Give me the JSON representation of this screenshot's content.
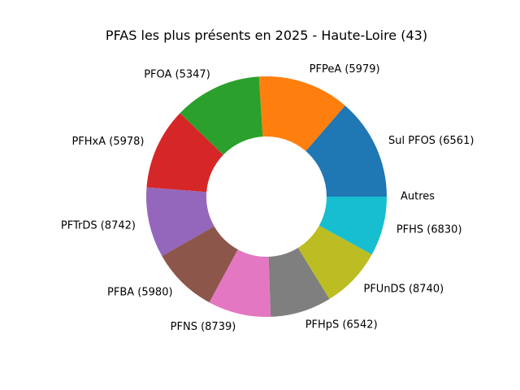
{
  "chart_data": {
    "type": "pie",
    "title": "PFAS les plus présents en 2025 - Haute-Loire (43)",
    "donut": true,
    "start": "east, counter-clockwise",
    "slices": [
      {
        "label": "Sul PFOS (6561)",
        "value": 12.3,
        "color": "#1f77b4"
      },
      {
        "label": "PFPeA (5979)",
        "value": 11.1,
        "color": "#ff7f0e"
      },
      {
        "label": "PFOA (5347)",
        "value": 10.6,
        "color": "#2ca02c"
      },
      {
        "label": "PFHxA (5978)",
        "value": 9.9,
        "color": "#d62728"
      },
      {
        "label": "PFTrDS (8742)",
        "value": 8.5,
        "color": "#9467bd"
      },
      {
        "label": "PFBA (5980)",
        "value": 8.0,
        "color": "#8c564b"
      },
      {
        "label": "PFNS (8739)",
        "value": 7.6,
        "color": "#e377c2"
      },
      {
        "label": "PFHpS (6542)",
        "value": 7.4,
        "color": "#7f7f7f"
      },
      {
        "label": "PFUnDS (8740)",
        "value": 7.4,
        "color": "#bcbd22"
      },
      {
        "label": "PFHS (6830)",
        "value": 7.2,
        "color": "#17becf"
      },
      {
        "label": "Autres",
        "value": 0.0,
        "color": "#1f77b4"
      }
    ]
  }
}
